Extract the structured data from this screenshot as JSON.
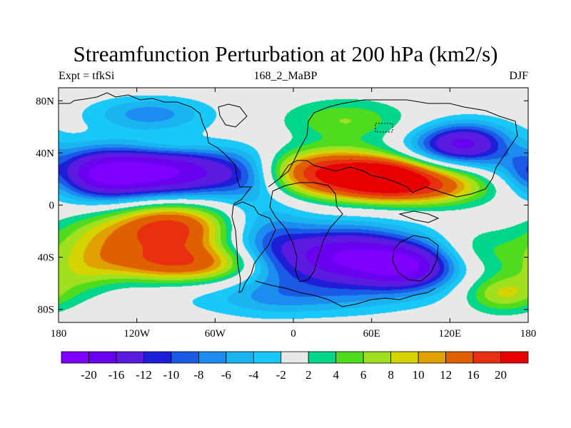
{
  "title": "Streamfunction Perturbation at 200 hPa (km2/s)",
  "left_label": "Expt = tfkSi",
  "center_label": "168_2_MaBP",
  "right_label": "DJF",
  "lat_ticks": [
    {
      "label": "80N",
      "value": 80
    },
    {
      "label": "40N",
      "value": 40
    },
    {
      "label": "0",
      "value": 0
    },
    {
      "label": "40S",
      "value": -40
    },
    {
      "label": "80S",
      "value": -80
    }
  ],
  "lon_ticks": [
    {
      "label": "180",
      "value": -180
    },
    {
      "label": "120W",
      "value": -120
    },
    {
      "label": "60W",
      "value": -60
    },
    {
      "label": "0",
      "value": 0
    },
    {
      "label": "60E",
      "value": 60
    },
    {
      "label": "120E",
      "value": 120
    },
    {
      "label": "180",
      "value": 180
    }
  ],
  "colorbar": {
    "colors": [
      "#7f00ff",
      "#6a00f0",
      "#5a1ae0",
      "#1e1ed8",
      "#1a5ae6",
      "#1c8cf0",
      "#1ab4f0",
      "#18c8f8",
      "#e8e8e8",
      "#00d68c",
      "#50dc1e",
      "#a0e01e",
      "#d6d400",
      "#e0a000",
      "#e06000",
      "#e83010",
      "#e60000"
    ],
    "labels": [
      "-20",
      "-16",
      "-12",
      "-10",
      "-8",
      "-6",
      "-4",
      "-2",
      "2",
      "4",
      "6",
      "8",
      "10",
      "12",
      "16",
      "20"
    ]
  },
  "colors": {
    "background_neutral": "#e8e8e8"
  },
  "chart_data": {
    "type": "heatmap",
    "title": "Streamfunction Perturbation at 200 hPa (km2/s)",
    "variable": "Streamfunction perturbation",
    "level": "200 hPa",
    "units": "km2/s",
    "season": "DJF",
    "experiment": "tfkSi",
    "case": "168_2_MaBP",
    "lon_range": [
      -180,
      180
    ],
    "lat_range": [
      -90,
      90
    ],
    "contour_levels": [
      -20,
      -16,
      -12,
      -10,
      -8,
      -6,
      -4,
      -2,
      2,
      4,
      6,
      8,
      10,
      12,
      16,
      20
    ],
    "features": [
      {
        "lon": -110,
        "lat": 25,
        "value": -22,
        "sx": 55,
        "sy": 14
      },
      {
        "lon": -145,
        "lat": 22,
        "value": -6,
        "sx": 20,
        "sy": 12
      },
      {
        "lon": -35,
        "lat": 22,
        "value": -4,
        "sx": 18,
        "sy": 12
      },
      {
        "lon": -95,
        "lat": -18,
        "value": 18,
        "sx": 30,
        "sy": 14
      },
      {
        "lon": -85,
        "lat": -45,
        "value": 14,
        "sx": 45,
        "sy": 10
      },
      {
        "lon": -150,
        "lat": -28,
        "value": 7,
        "sx": 25,
        "sy": 14
      },
      {
        "lon": -165,
        "lat": -55,
        "value": 4,
        "sx": 20,
        "sy": 12
      },
      {
        "lon": 30,
        "lat": 25,
        "value": 21,
        "sx": 38,
        "sy": 12
      },
      {
        "lon": 95,
        "lat": 15,
        "value": 17,
        "sx": 40,
        "sy": 10
      },
      {
        "lon": 70,
        "lat": 22,
        "value": 12,
        "sx": 20,
        "sy": 8
      },
      {
        "lon": 40,
        "lat": 65,
        "value": 6,
        "sx": 32,
        "sy": 11
      },
      {
        "lon": 135,
        "lat": 48,
        "value": -13,
        "sx": 22,
        "sy": 11
      },
      {
        "lon": 110,
        "lat": 46,
        "value": -6,
        "sx": 22,
        "sy": 10
      },
      {
        "lon": -110,
        "lat": 70,
        "value": -7,
        "sx": 32,
        "sy": 9
      },
      {
        "lon": -95,
        "lat": 45,
        "value": 3,
        "sx": 25,
        "sy": 6
      },
      {
        "lon": 40,
        "lat": -40,
        "value": -20,
        "sx": 40,
        "sy": 16
      },
      {
        "lon": 90,
        "lat": -48,
        "value": -14,
        "sx": 25,
        "sy": 12
      },
      {
        "lon": -20,
        "lat": -30,
        "value": -6,
        "sx": 22,
        "sy": 25
      },
      {
        "lon": 0,
        "lat": -72,
        "value": -5,
        "sx": 60,
        "sy": 10
      },
      {
        "lon": 160,
        "lat": -68,
        "value": 8,
        "sx": 20,
        "sy": 10
      },
      {
        "lon": 145,
        "lat": -35,
        "value": 4,
        "sx": 25,
        "sy": 12
      },
      {
        "lon": -178,
        "lat": 25,
        "value": 3,
        "sx": 8,
        "sy": 10
      },
      {
        "lon": 178,
        "lat": 25,
        "value": -3,
        "sx": 8,
        "sy": 10
      }
    ]
  }
}
